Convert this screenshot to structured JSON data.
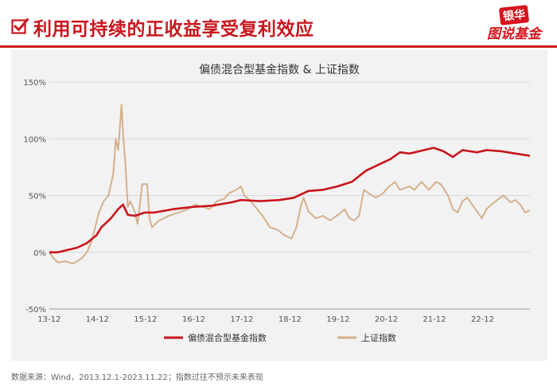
{
  "header": {
    "headline": "利用可持续的正收益享受复利效应",
    "logo_top": "银华",
    "logo_bottom": "图说基金"
  },
  "footnote": "数据来源：Wind，2013.12.1-2023.11.22；指数过往不预示未来表现",
  "colors": {
    "accent": "#c8161d",
    "series_red": "#c8161d",
    "series_tan": "#d4b08c",
    "panel_bg": "#f2f2f2"
  },
  "chart_data": {
    "type": "line",
    "title": "偏债混合型基金指数 & 上证指数",
    "xlabel": "",
    "ylabel": "",
    "x_ticks": [
      "13-12",
      "14-12",
      "15-12",
      "16-12",
      "17-12",
      "18-12",
      "19-12",
      "20-12",
      "21-12",
      "22-12"
    ],
    "y_ticks": [
      "150%",
      "100%",
      "50%",
      "0%",
      "-50%"
    ],
    "ylim": [
      -50,
      150
    ],
    "xlim": [
      2013.92,
      2023.9
    ],
    "grid": "horizontal",
    "legend_position": "bottom",
    "series": [
      {
        "name": "偏债混合型基金指数",
        "color": "#c8161d",
        "points": [
          [
            2013.92,
            0
          ],
          [
            2014.1,
            0
          ],
          [
            2014.3,
            2
          ],
          [
            2014.5,
            4
          ],
          [
            2014.7,
            8
          ],
          [
            2014.9,
            15
          ],
          [
            2015.0,
            22
          ],
          [
            2015.2,
            30
          ],
          [
            2015.35,
            38
          ],
          [
            2015.45,
            42
          ],
          [
            2015.55,
            33
          ],
          [
            2015.7,
            32
          ],
          [
            2015.9,
            35
          ],
          [
            2016.1,
            35
          ],
          [
            2016.5,
            38
          ],
          [
            2016.9,
            40
          ],
          [
            2017.3,
            41
          ],
          [
            2017.7,
            44
          ],
          [
            2017.9,
            46
          ],
          [
            2018.3,
            45
          ],
          [
            2018.7,
            46
          ],
          [
            2019.0,
            48
          ],
          [
            2019.3,
            54
          ],
          [
            2019.6,
            55
          ],
          [
            2019.9,
            58
          ],
          [
            2020.2,
            62
          ],
          [
            2020.5,
            72
          ],
          [
            2020.8,
            78
          ],
          [
            2021.0,
            82
          ],
          [
            2021.2,
            88
          ],
          [
            2021.4,
            87
          ],
          [
            2021.7,
            90
          ],
          [
            2021.9,
            92
          ],
          [
            2022.1,
            89
          ],
          [
            2022.3,
            84
          ],
          [
            2022.5,
            90
          ],
          [
            2022.8,
            88
          ],
          [
            2023.0,
            90
          ],
          [
            2023.3,
            89
          ],
          [
            2023.6,
            87
          ],
          [
            2023.9,
            85
          ]
        ]
      },
      {
        "name": "上证指数",
        "color": "#d4b08c",
        "points": [
          [
            2013.92,
            0
          ],
          [
            2014.0,
            -5
          ],
          [
            2014.1,
            -9
          ],
          [
            2014.25,
            -8
          ],
          [
            2014.4,
            -10
          ],
          [
            2014.5,
            -8
          ],
          [
            2014.6,
            -5
          ],
          [
            2014.7,
            0
          ],
          [
            2014.8,
            10
          ],
          [
            2014.95,
            35
          ],
          [
            2015.05,
            45
          ],
          [
            2015.15,
            50
          ],
          [
            2015.25,
            70
          ],
          [
            2015.3,
            100
          ],
          [
            2015.35,
            90
          ],
          [
            2015.42,
            130
          ],
          [
            2015.45,
            105
          ],
          [
            2015.5,
            78
          ],
          [
            2015.55,
            40
          ],
          [
            2015.6,
            45
          ],
          [
            2015.7,
            35
          ],
          [
            2015.75,
            25
          ],
          [
            2015.85,
            60
          ],
          [
            2015.95,
            60
          ],
          [
            2016.0,
            30
          ],
          [
            2016.05,
            22
          ],
          [
            2016.2,
            28
          ],
          [
            2016.4,
            32
          ],
          [
            2016.6,
            35
          ],
          [
            2016.8,
            38
          ],
          [
            2016.95,
            42
          ],
          [
            2017.1,
            40
          ],
          [
            2017.25,
            38
          ],
          [
            2017.4,
            45
          ],
          [
            2017.55,
            47
          ],
          [
            2017.65,
            52
          ],
          [
            2017.8,
            55
          ],
          [
            2017.9,
            58
          ],
          [
            2017.97,
            50
          ],
          [
            2018.1,
            45
          ],
          [
            2018.2,
            40
          ],
          [
            2018.35,
            32
          ],
          [
            2018.5,
            22
          ],
          [
            2018.65,
            20
          ],
          [
            2018.8,
            15
          ],
          [
            2018.95,
            12
          ],
          [
            2019.05,
            22
          ],
          [
            2019.15,
            42
          ],
          [
            2019.2,
            48
          ],
          [
            2019.3,
            36
          ],
          [
            2019.45,
            30
          ],
          [
            2019.6,
            32
          ],
          [
            2019.75,
            28
          ],
          [
            2019.95,
            34
          ],
          [
            2020.05,
            38
          ],
          [
            2020.15,
            30
          ],
          [
            2020.25,
            28
          ],
          [
            2020.35,
            32
          ],
          [
            2020.45,
            55
          ],
          [
            2020.55,
            52
          ],
          [
            2020.7,
            48
          ],
          [
            2020.85,
            52
          ],
          [
            2020.95,
            57
          ],
          [
            2021.1,
            62
          ],
          [
            2021.2,
            55
          ],
          [
            2021.4,
            58
          ],
          [
            2021.5,
            55
          ],
          [
            2021.65,
            62
          ],
          [
            2021.8,
            55
          ],
          [
            2021.95,
            62
          ],
          [
            2022.05,
            60
          ],
          [
            2022.2,
            50
          ],
          [
            2022.3,
            38
          ],
          [
            2022.4,
            35
          ],
          [
            2022.5,
            45
          ],
          [
            2022.6,
            48
          ],
          [
            2022.7,
            42
          ],
          [
            2022.8,
            36
          ],
          [
            2022.9,
            30
          ],
          [
            2023.0,
            38
          ],
          [
            2023.1,
            42
          ],
          [
            2023.25,
            47
          ],
          [
            2023.35,
            50
          ],
          [
            2023.5,
            44
          ],
          [
            2023.6,
            46
          ],
          [
            2023.7,
            42
          ],
          [
            2023.8,
            35
          ],
          [
            2023.9,
            37
          ]
        ]
      }
    ]
  }
}
